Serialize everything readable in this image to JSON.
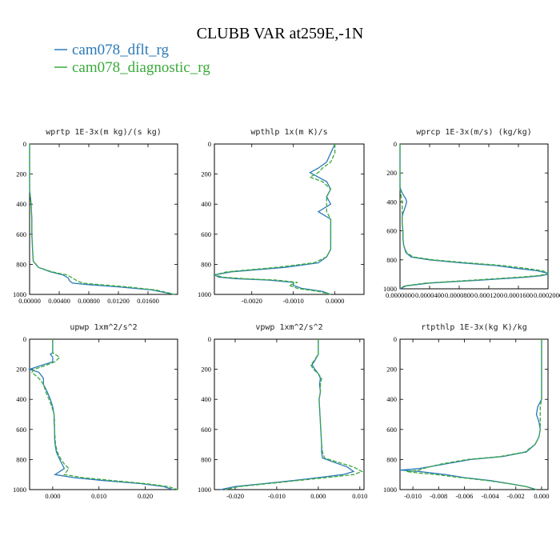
{
  "figure": {
    "title": "CLUBB VAR at259E,-1N",
    "legend": [
      {
        "name": "cam078_dflt_rg",
        "color": "#2a7ab7",
        "dash": "solid"
      },
      {
        "name": "cam078_diagnostic_rg",
        "color": "#3aaa3a",
        "dash": "dashed"
      }
    ]
  },
  "chart_data": [
    {
      "type": "line",
      "title": "wprtp  1E-3x(m kg)/(s kg)",
      "xlim": [
        0,
        0.02
      ],
      "ylim": [
        1000,
        0
      ],
      "xticks": [
        0,
        0.004,
        0.008,
        0.012,
        0.016
      ],
      "xtick_labels": [
        "0.00000",
        "0.00400",
        "0.00800",
        "0.01200",
        "0.01600"
      ],
      "yticks": [
        0,
        200,
        400,
        600,
        800,
        1000
      ],
      "series": [
        {
          "name": "cam078_dflt_rg",
          "y": [
            0,
            100,
            200,
            300,
            400,
            500,
            600,
            700,
            780,
            820,
            850,
            870,
            890,
            910,
            925,
            935,
            950,
            970,
            990,
            1000
          ],
          "x": [
            0.0,
            0.0,
            0.0,
            0.0,
            0.0002,
            0.0003,
            0.0003,
            0.0004,
            0.0005,
            0.0012,
            0.0028,
            0.0045,
            0.0052,
            0.0054,
            0.0058,
            0.008,
            0.012,
            0.0165,
            0.0185,
            0.0195
          ]
        },
        {
          "name": "cam078_diagnostic_rg",
          "y": [
            0,
            100,
            200,
            300,
            400,
            500,
            600,
            700,
            780,
            820,
            850,
            870,
            890,
            910,
            925,
            935,
            950,
            970,
            990,
            1000
          ],
          "x": [
            0.0,
            0.0,
            0.0,
            0.0,
            0.0002,
            0.0003,
            0.0003,
            0.0004,
            0.0005,
            0.0012,
            0.003,
            0.005,
            0.0058,
            0.0064,
            0.0072,
            0.0095,
            0.0132,
            0.017,
            0.0188,
            0.0196
          ]
        }
      ]
    },
    {
      "type": "line",
      "title": "wpthlp  1x(m K)/s",
      "xlim": [
        -0.0029,
        0.0007
      ],
      "ylim": [
        1000,
        0
      ],
      "xticks": [
        -0.002,
        -0.001,
        0.0
      ],
      "xtick_labels": [
        "-0.0020",
        "-0.0010",
        "0.0000"
      ],
      "yticks": [
        0,
        200,
        400,
        600,
        800,
        1000
      ],
      "series": [
        {
          "name": "cam078_dflt_rg",
          "y": [
            0,
            60,
            120,
            160,
            190,
            220,
            250,
            300,
            350,
            400,
            450,
            500,
            550,
            600,
            650,
            700,
            750,
            790,
            820,
            850,
            870,
            885,
            895,
            905,
            920,
            940,
            960,
            980,
            1000
          ],
          "x": [
            0.0,
            -0.0001,
            -0.0002,
            -0.0004,
            -0.0006,
            -0.0004,
            -0.0002,
            -0.0001,
            -0.0002,
            -0.0001,
            -0.0004,
            -0.0001,
            -0.0001,
            -0.0001,
            -0.0001,
            -0.0001,
            -0.0002,
            -0.0004,
            -0.0012,
            -0.0025,
            -0.0029,
            -0.0028,
            -0.0024,
            -0.0016,
            -0.001,
            -0.001,
            -0.0008,
            -0.0003,
            -0.0001
          ]
        },
        {
          "name": "cam078_diagnostic_rg",
          "y": [
            0,
            60,
            120,
            160,
            190,
            220,
            250,
            300,
            350,
            400,
            450,
            500,
            550,
            600,
            650,
            700,
            750,
            790,
            820,
            850,
            870,
            885,
            895,
            905,
            920,
            940,
            960,
            980,
            1000
          ],
          "x": [
            0.0,
            0.0,
            -0.0001,
            -0.0003,
            -0.0004,
            -0.0006,
            -0.0003,
            -0.0001,
            -0.0002,
            -0.0002,
            -0.0002,
            -0.0001,
            -0.0001,
            -0.0001,
            -0.0001,
            -0.0001,
            -0.0002,
            -0.0005,
            -0.0014,
            -0.0026,
            -0.0029,
            -0.0027,
            -0.0022,
            -0.0014,
            -0.0009,
            -0.0011,
            -0.0009,
            -0.0004,
            -0.0001
          ]
        }
      ]
    },
    {
      "type": "line",
      "title": "wprcp  1E-3x(m/s) (kg/kg)",
      "xlim": [
        0,
        0.0002
      ],
      "ylim": [
        1000,
        0
      ],
      "xticks": [
        0,
        4e-05,
        8e-05,
        0.00012,
        0.00016,
        0.0002
      ],
      "xtick_labels": [
        "0.0000000",
        "0.0000400",
        "0.0000800",
        "0.0001200",
        "0.0001600",
        "0.0002000"
      ],
      "yticks": [
        0,
        200,
        400,
        600,
        800,
        1000
      ],
      "series": [
        {
          "name": "cam078_dflt_rg",
          "y": [
            0,
            300,
            340,
            380,
            400,
            420,
            450,
            480,
            500,
            550,
            600,
            650,
            700,
            750,
            780,
            800,
            820,
            840,
            860,
            875,
            890,
            900,
            910,
            920,
            940,
            960,
            980,
            1000
          ],
          "x": [
            0.0,
            0.0,
            3e-06,
            8e-06,
            9e-06,
            8e-06,
            6e-06,
            4e-06,
            3e-06,
            3e-06,
            4e-06,
            4e-06,
            5e-06,
            8e-06,
            1.5e-05,
            4e-05,
            8e-05,
            0.00013,
            0.00016,
            0.000185,
            0.000198,
            0.0002,
            0.00019,
            0.00017,
            0.00011,
            4e-05,
            8e-06,
            0.0
          ]
        },
        {
          "name": "cam078_diagnostic_rg",
          "y": [
            0,
            300,
            340,
            380,
            400,
            420,
            450,
            480,
            500,
            550,
            600,
            650,
            700,
            750,
            780,
            800,
            820,
            840,
            860,
            875,
            890,
            900,
            910,
            920,
            940,
            960,
            980,
            1000
          ],
          "x": [
            0.0,
            0.0,
            1e-06,
            2e-06,
            3e-06,
            3e-06,
            3e-06,
            3e-06,
            3e-06,
            3e-06,
            4e-06,
            4e-06,
            5e-06,
            9e-06,
            1.8e-05,
            4.5e-05,
            9e-05,
            0.00014,
            0.000172,
            0.000192,
            0.0002,
            0.000198,
            0.000185,
            0.00016,
            0.0001,
            3.5e-05,
            6e-06,
            0.0
          ]
        }
      ]
    },
    {
      "type": "line",
      "title": "upwp  1xm^2/s^2",
      "xlim": [
        -0.005,
        0.027
      ],
      "ylim": [
        1000,
        0
      ],
      "xticks": [
        0,
        0.01,
        0.02
      ],
      "xtick_labels": [
        "0.000",
        "0.010",
        "0.020"
      ],
      "yticks": [
        0,
        200,
        400,
        600,
        800,
        1000
      ],
      "series": [
        {
          "name": "cam078_dflt_rg",
          "y": [
            0,
            50,
            90,
            100,
            120,
            150,
            180,
            200,
            220,
            260,
            300,
            350,
            400,
            450,
            500,
            550,
            600,
            650,
            700,
            750,
            800,
            830,
            860,
            880,
            900,
            920,
            940,
            960,
            980,
            1000
          ],
          "x": [
            0.0,
            0.0,
            0.0,
            -0.0005,
            0.0,
            0.0,
            -0.003,
            -0.005,
            -0.003,
            -0.002,
            -0.002,
            -0.0012,
            -0.0005,
            0.0,
            0.0003,
            0.0003,
            0.0004,
            0.0004,
            0.0005,
            0.0008,
            0.0015,
            0.002,
            0.0025,
            0.0015,
            0.0005,
            0.0045,
            0.011,
            0.019,
            0.024,
            0.026
          ]
        },
        {
          "name": "cam078_diagnostic_rg",
          "y": [
            0,
            50,
            90,
            100,
            120,
            150,
            180,
            200,
            220,
            260,
            300,
            350,
            400,
            450,
            500,
            550,
            600,
            650,
            700,
            750,
            800,
            830,
            860,
            880,
            900,
            920,
            940,
            960,
            980,
            1000
          ],
          "x": [
            0.0,
            0.0,
            0.0,
            0.0005,
            0.0015,
            0.0005,
            -0.002,
            -0.004,
            -0.0045,
            -0.003,
            -0.002,
            -0.0015,
            -0.0008,
            -0.0002,
            0.0003,
            0.0004,
            0.0004,
            0.0005,
            0.0006,
            0.001,
            0.0018,
            0.0025,
            0.0035,
            0.003,
            0.0025,
            0.0065,
            0.013,
            0.02,
            0.025,
            0.027
          ]
        }
      ]
    },
    {
      "type": "line",
      "title": "vpwp  1xm^2/s^2",
      "xlim": [
        -0.025,
        0.011
      ],
      "ylim": [
        1000,
        0
      ],
      "xticks": [
        -0.02,
        -0.01,
        0.0,
        0.01
      ],
      "xtick_labels": [
        "-0.020",
        "-0.010",
        "0.000",
        "0.010"
      ],
      "yticks": [
        0,
        200,
        400,
        600,
        800,
        1000
      ],
      "series": [
        {
          "name": "cam078_dflt_rg",
          "y": [
            0,
            100,
            150,
            170,
            200,
            230,
            260,
            300,
            350,
            400,
            450,
            500,
            600,
            700,
            750,
            790,
            820,
            850,
            880,
            900,
            920,
            940,
            960,
            980,
            1000
          ],
          "x": [
            0.0,
            0.0,
            -0.001,
            -0.0015,
            -0.0008,
            0.0,
            0.0005,
            0.0003,
            0.0005,
            0.0002,
            0.0003,
            0.0004,
            0.0006,
            0.0008,
            0.0008,
            0.001,
            0.004,
            0.007,
            0.0085,
            0.006,
            0.0,
            -0.006,
            -0.013,
            -0.02,
            -0.0235
          ]
        },
        {
          "name": "cam078_diagnostic_rg",
          "y": [
            0,
            100,
            150,
            170,
            200,
            230,
            260,
            300,
            350,
            400,
            450,
            500,
            600,
            700,
            750,
            790,
            820,
            850,
            880,
            900,
            920,
            940,
            960,
            980,
            1000
          ],
          "x": [
            0.0,
            0.0,
            -0.0012,
            -0.0018,
            -0.0012,
            0.0,
            0.0008,
            0.0005,
            0.0005,
            0.0002,
            0.0003,
            0.0004,
            0.0006,
            0.0008,
            0.001,
            0.0015,
            0.005,
            0.0085,
            0.0105,
            0.0085,
            0.002,
            -0.005,
            -0.012,
            -0.019,
            -0.0225
          ]
        }
      ]
    },
    {
      "type": "line",
      "title": "rtpthlp  1E-3x(kg K)/kg",
      "xlim": [
        -0.011,
        0.0005
      ],
      "ylim": [
        1000,
        0
      ],
      "xticks": [
        -0.01,
        -0.008,
        -0.006,
        -0.004,
        -0.002,
        0.0
      ],
      "xtick_labels": [
        "-0.010",
        "-0.008",
        "-0.006",
        "-0.004",
        "-0.002",
        "0.000"
      ],
      "yticks": [
        0,
        200,
        400,
        600,
        800,
        1000
      ],
      "series": [
        {
          "name": "cam078_dflt_rg",
          "y": [
            0,
            200,
            400,
            450,
            500,
            550,
            600,
            650,
            700,
            750,
            780,
            800,
            830,
            860,
            870,
            880,
            890,
            900,
            920,
            940,
            960,
            980,
            1000
          ],
          "x": [
            0.0,
            0.0,
            0.0,
            -0.0003,
            -0.0004,
            -0.0002,
            -0.0001,
            -0.0002,
            -0.0005,
            -0.0012,
            -0.003,
            -0.0055,
            -0.0075,
            -0.0095,
            -0.011,
            -0.0095,
            -0.0085,
            -0.0075,
            -0.006,
            -0.004,
            -0.0025,
            -0.0012,
            -0.0004
          ]
        },
        {
          "name": "cam078_diagnostic_rg",
          "y": [
            0,
            200,
            400,
            450,
            500,
            550,
            600,
            650,
            700,
            750,
            780,
            800,
            830,
            860,
            870,
            880,
            890,
            900,
            920,
            940,
            960,
            980,
            1000
          ],
          "x": [
            0.0,
            0.0,
            0.0,
            -0.0001,
            -0.0001,
            -0.0001,
            -0.0001,
            -0.0002,
            -0.0005,
            -0.0013,
            -0.0032,
            -0.0058,
            -0.0078,
            -0.0092,
            -0.0095,
            -0.0105,
            -0.0095,
            -0.0082,
            -0.0063,
            -0.0042,
            -0.0026,
            -0.0012,
            -0.0004
          ]
        }
      ]
    }
  ]
}
